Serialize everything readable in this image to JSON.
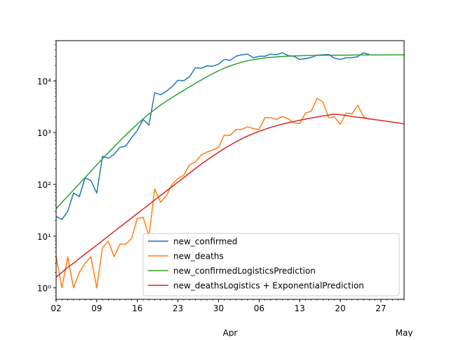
{
  "chart_data": {
    "type": "line",
    "title": "",
    "xlabel": "",
    "ylabel": "",
    "y_scale": "log",
    "ylim": [
      0.6,
      60000
    ],
    "xlim": [
      "2020-03-02",
      "2020-05-01"
    ],
    "grid": false,
    "legend_position": "lower-right",
    "x_tick_labels": [
      "02",
      "09",
      "16",
      "23",
      "30",
      "06",
      "13",
      "20",
      "27"
    ],
    "x_tick_dates": [
      "2020-03-02",
      "2020-03-09",
      "2020-03-16",
      "2020-03-23",
      "2020-03-30",
      "2020-04-06",
      "2020-04-13",
      "2020-04-20",
      "2020-04-27"
    ],
    "x_month_labels": [
      "Apr",
      "May"
    ],
    "x_month_dates": [
      "2020-04-01",
      "2020-05-01"
    ],
    "y_tick_labels": [
      "10⁰",
      "10¹",
      "10²",
      "10³",
      "10⁴"
    ],
    "y_tick_values": [
      1,
      10,
      100,
      1000,
      10000
    ],
    "dates": [
      "2020-03-02",
      "2020-03-03",
      "2020-03-04",
      "2020-03-05",
      "2020-03-06",
      "2020-03-07",
      "2020-03-08",
      "2020-03-09",
      "2020-03-10",
      "2020-03-11",
      "2020-03-12",
      "2020-03-13",
      "2020-03-14",
      "2020-03-15",
      "2020-03-16",
      "2020-03-17",
      "2020-03-18",
      "2020-03-19",
      "2020-03-20",
      "2020-03-21",
      "2020-03-22",
      "2020-03-23",
      "2020-03-24",
      "2020-03-25",
      "2020-03-26",
      "2020-03-27",
      "2020-03-28",
      "2020-03-29",
      "2020-03-30",
      "2020-03-31",
      "2020-04-01",
      "2020-04-02",
      "2020-04-03",
      "2020-04-04",
      "2020-04-05",
      "2020-04-06",
      "2020-04-07",
      "2020-04-08",
      "2020-04-09",
      "2020-04-10",
      "2020-04-11",
      "2020-04-12",
      "2020-04-13",
      "2020-04-14",
      "2020-04-15",
      "2020-04-16",
      "2020-04-17",
      "2020-04-18",
      "2020-04-19",
      "2020-04-20",
      "2020-04-21",
      "2020-04-22",
      "2020-04-23",
      "2020-04-24",
      "2020-04-25",
      "2020-04-26",
      "2020-04-27",
      "2020-04-28",
      "2020-04-29",
      "2020-04-30",
      "2020-05-01"
    ],
    "series": [
      {
        "name": "new_confirmed",
        "color": "#1f77b4",
        "values": [
          24,
          21,
          30,
          68,
          58,
          135,
          118,
          68,
          350,
          320,
          380,
          520,
          550,
          800,
          1100,
          1800,
          1400,
          5900,
          5400,
          6300,
          7800,
          10300,
          10100,
          12000,
          18000,
          17500,
          19500,
          19300,
          21000,
          26000,
          25000,
          30000,
          32000,
          33000,
          28000,
          30000,
          30000,
          33000,
          32000,
          35000,
          31000,
          30000,
          26000,
          27000,
          28500,
          31500,
          32000,
          32500,
          27500,
          26000,
          28000,
          28000,
          29500,
          35000,
          32500,
          null,
          null,
          null,
          null,
          null,
          null
        ]
      },
      {
        "name": "new_deaths",
        "color": "#ff7f0e",
        "values": [
          4,
          1,
          4,
          1,
          2,
          3,
          4,
          1,
          6,
          8,
          4,
          7,
          7,
          9,
          22,
          23,
          10,
          82,
          45,
          60,
          100,
          130,
          150,
          240,
          270,
          370,
          420,
          460,
          520,
          900,
          880,
          1150,
          1150,
          1300,
          1200,
          1150,
          1950,
          1950,
          1800,
          2050,
          1850,
          1550,
          1500,
          2400,
          2600,
          4600,
          3900,
          1950,
          2000,
          1450,
          2400,
          2300,
          3400,
          2050,
          1800,
          null,
          null,
          null,
          null,
          null,
          null
        ]
      },
      {
        "name": "new_confirmedLogisticsPrediction",
        "color": "#2ca02c",
        "values": [
          34,
          45,
          59,
          78,
          103,
          136,
          180,
          238,
          313,
          410,
          535,
          695,
          898,
          1150,
          1460,
          1840,
          2290,
          2810,
          3400,
          4050,
          4790,
          5620,
          6580,
          7680,
          8950,
          10400,
          12000,
          13800,
          15700,
          17600,
          19500,
          21300,
          23000,
          24500,
          25800,
          26900,
          27800,
          28600,
          29200,
          29700,
          30100,
          30400,
          30700,
          30900,
          31100,
          31200,
          31300,
          31400,
          31500,
          31550,
          31600,
          31650,
          31700,
          31720,
          31740,
          31760,
          31780,
          31790,
          31800,
          31810,
          31820
        ]
      },
      {
        "name": "new_deathsLogistics + ExponentialPrediction",
        "color": "#d62728",
        "values": [
          1.6,
          2.0,
          2.5,
          3.0,
          3.7,
          4.5,
          5.5,
          6.7,
          8.2,
          10.0,
          12.3,
          15.0,
          18.3,
          22.4,
          27.3,
          33.4,
          40.8,
          49.9,
          60.9,
          74.4,
          90.9,
          111,
          135,
          165,
          202,
          245,
          295,
          352,
          418,
          493,
          575,
          664,
          759,
          858,
          960,
          1062,
          1164,
          1264,
          1362,
          1458,
          1552,
          1646,
          1738,
          1829,
          1920,
          2010,
          2100,
          2190,
          2280,
          2220,
          2140,
          2060,
          1990,
          1920,
          1850,
          1780,
          1720,
          1660,
          1600,
          1540,
          1480
        ]
      }
    ]
  }
}
